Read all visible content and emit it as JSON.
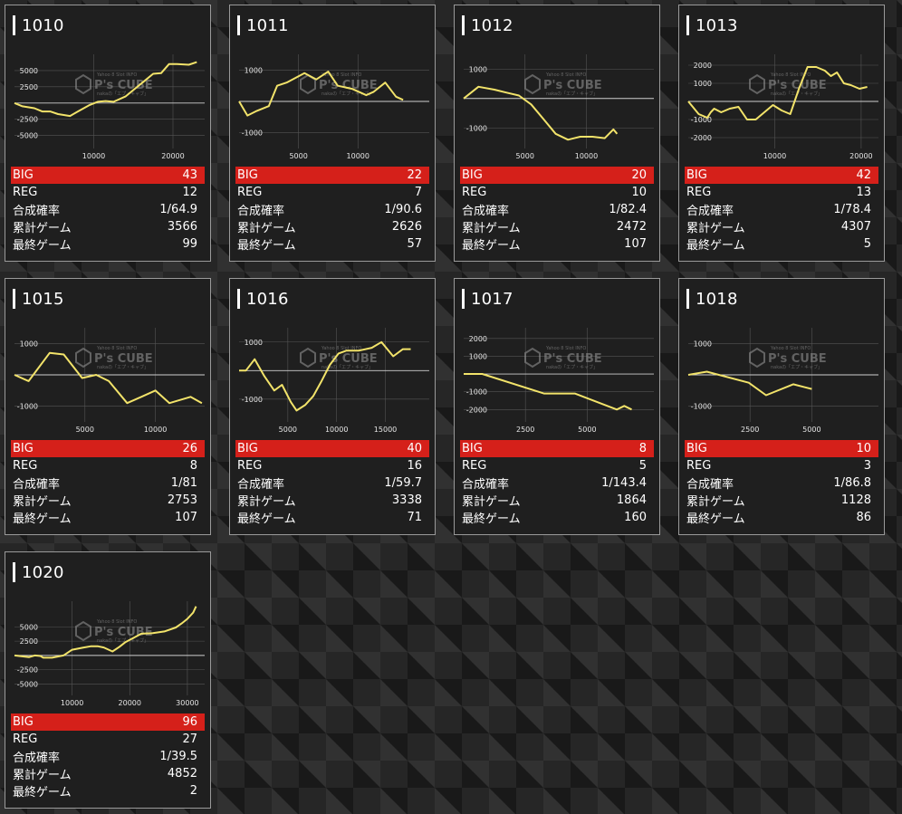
{
  "labels": {
    "big": "BIG",
    "reg": "REG",
    "prob": "合成確率",
    "total": "累計ゲーム",
    "last": "最終ゲーム"
  },
  "colors": {
    "accent": "#d5201a",
    "line": "#f2e36a",
    "grid": "#555555",
    "panel": "#1f1f1f"
  },
  "watermark": {
    "brand": "P's CUBE",
    "top": "Yahoo 8 Slot INFO",
    "bottom": "nakaの「エプ・キャブ」"
  },
  "cards": [
    {
      "id": "1010",
      "big": "43",
      "reg": "12",
      "prob": "1/64.9",
      "total": "3566",
      "last": "99",
      "chart_data": {
        "type": "line",
        "xlim": [
          0,
          24000
        ],
        "ylim": [
          -7000,
          7500
        ],
        "xticks": [
          "10000",
          "20000"
        ],
        "xtick_values": [
          10000,
          20000
        ],
        "yticks": [
          "5000",
          "2500",
          "",
          "-2500",
          "-5000"
        ],
        "ytick_values": [
          5000,
          2500,
          0,
          -2500,
          -5000
        ],
        "x": [
          0,
          1000,
          2500,
          3500,
          4500,
          5500,
          7000,
          8000,
          9500,
          10500,
          11500,
          12500,
          14000,
          15000,
          16500,
          17500,
          18500,
          19500,
          20500,
          22000,
          23000
        ],
        "y": [
          0,
          -500,
          -800,
          -1300,
          -1300,
          -1700,
          -2000,
          -1300,
          -300,
          200,
          300,
          200,
          1000,
          2000,
          3500,
          4500,
          4600,
          6000,
          6000,
          5900,
          6300
        ]
      }
    },
    {
      "id": "1011",
      "big": "22",
      "reg": "7",
      "prob": "1/90.6",
      "total": "2626",
      "last": "57",
      "chart_data": {
        "type": "line",
        "xlim": [
          0,
          16000
        ],
        "ylim": [
          -1500,
          1500
        ],
        "xticks": [
          "5000",
          "10000"
        ],
        "xtick_values": [
          5000,
          10000
        ],
        "yticks": [
          "1000",
          "",
          "-1000"
        ],
        "ytick_values": [
          1000,
          0,
          -1000
        ],
        "x": [
          0,
          700,
          1500,
          2500,
          3200,
          4000,
          5500,
          6500,
          7500,
          8300,
          9500,
          10700,
          11300,
          12300,
          13200,
          13800
        ],
        "y": [
          0,
          -450,
          -300,
          -150,
          500,
          600,
          900,
          700,
          950,
          500,
          400,
          200,
          300,
          600,
          150,
          50
        ]
      }
    },
    {
      "id": "1012",
      "big": "20",
      "reg": "10",
      "prob": "1/82.4",
      "total": "2472",
      "last": "107",
      "chart_data": {
        "type": "line",
        "xlim": [
          0,
          15500
        ],
        "ylim": [
          -1700,
          1500
        ],
        "xticks": [
          "5000",
          "10000"
        ],
        "xtick_values": [
          5000,
          10000
        ],
        "yticks": [
          "1000",
          "",
          "-1000"
        ],
        "ytick_values": [
          1000,
          0,
          -1000
        ],
        "x": [
          0,
          1200,
          2500,
          3500,
          4500,
          5500,
          6500,
          7500,
          8500,
          9500,
          10500,
          11500,
          12200,
          12500
        ],
        "y": [
          0,
          400,
          300,
          200,
          100,
          -200,
          -700,
          -1200,
          -1400,
          -1300,
          -1300,
          -1350,
          -1050,
          -1200
        ]
      }
    },
    {
      "id": "1013",
      "big": "42",
      "reg": "13",
      "prob": "1/78.4",
      "total": "4307",
      "last": "5",
      "chart_data": {
        "type": "line",
        "xlim": [
          0,
          22000
        ],
        "ylim": [
          -2600,
          2600
        ],
        "xticks": [
          "10000",
          "20000"
        ],
        "xtick_values": [
          10000,
          20000
        ],
        "yticks": [
          "2000",
          "1000",
          "",
          "-1000",
          "-2000"
        ],
        "ytick_values": [
          2000,
          1000,
          0,
          -1000,
          -2000
        ],
        "x": [
          0,
          1200,
          2200,
          2600,
          3000,
          3800,
          4800,
          5800,
          6800,
          7800,
          8800,
          9800,
          10800,
          11800,
          12800,
          13800,
          14800,
          15800,
          16500,
          17200,
          18000,
          18800,
          19800,
          20700
        ],
        "y": [
          0,
          -700,
          -900,
          -600,
          -400,
          -600,
          -400,
          -300,
          -1000,
          -1000,
          -600,
          -200,
          -500,
          -700,
          700,
          1900,
          1900,
          1700,
          1400,
          1600,
          1000,
          900,
          700,
          800
        ]
      }
    },
    {
      "id": "1015",
      "big": "26",
      "reg": "8",
      "prob": "1/81",
      "total": "2753",
      "last": "107",
      "chart_data": {
        "type": "line",
        "xlim": [
          0,
          13500
        ],
        "ylim": [
          -1500,
          1500
        ],
        "xticks": [
          "5000",
          "10000"
        ],
        "xtick_values": [
          5000,
          10000
        ],
        "yticks": [
          "1000",
          "",
          "-1000"
        ],
        "ytick_values": [
          1000,
          0,
          -1000
        ],
        "x": [
          0,
          1000,
          2500,
          3500,
          4800,
          5800,
          6700,
          8000,
          9000,
          10000,
          11000,
          12500,
          13300
        ],
        "y": [
          0,
          -200,
          700,
          650,
          -100,
          0,
          -200,
          -900,
          -700,
          -500,
          -900,
          -700,
          -900
        ]
      }
    },
    {
      "id": "1016",
      "big": "40",
      "reg": "16",
      "prob": "1/59.7",
      "total": "3338",
      "last": "71",
      "chart_data": {
        "type": "line",
        "xlim": [
          0,
          19500
        ],
        "ylim": [
          -1800,
          1500
        ],
        "xticks": [
          "5000",
          "10000",
          "15000"
        ],
        "xtick_values": [
          5000,
          10000,
          15000
        ],
        "yticks": [
          "1000",
          "",
          "-1000"
        ],
        "ytick_values": [
          1000,
          0,
          -1000
        ],
        "x": [
          0,
          700,
          1600,
          2600,
          3600,
          4400,
          5300,
          5900,
          6800,
          7600,
          8400,
          9300,
          10200,
          11000,
          12300,
          13600,
          14600,
          15800,
          16800,
          17600
        ],
        "y": [
          0,
          0,
          400,
          -200,
          -700,
          -500,
          -1100,
          -1400,
          -1200,
          -900,
          -400,
          200,
          600,
          700,
          700,
          800,
          1000,
          500,
          750,
          750
        ]
      }
    },
    {
      "id": "1017",
      "big": "8",
      "reg": "5",
      "prob": "1/143.4",
      "total": "1864",
      "last": "160",
      "chart_data": {
        "type": "line",
        "xlim": [
          0,
          7700
        ],
        "ylim": [
          -2700,
          2600
        ],
        "xticks": [
          "2500",
          "5000"
        ],
        "xtick_values": [
          2500,
          5000
        ],
        "yticks": [
          "2000",
          "1000",
          "",
          "-1000",
          "-2000"
        ],
        "ytick_values": [
          2000,
          1000,
          0,
          -1000,
          -2000
        ],
        "x": [
          0,
          750,
          3250,
          4500,
          6200,
          6500,
          6800
        ],
        "y": [
          0,
          0,
          -1100,
          -1100,
          -2000,
          -1800,
          -2000
        ]
      }
    },
    {
      "id": "1018",
      "big": "10",
      "reg": "3",
      "prob": "1/86.8",
      "total": "1128",
      "last": "86",
      "chart_data": {
        "type": "line",
        "xlim": [
          0,
          7700
        ],
        "ylim": [
          -1500,
          1500
        ],
        "xticks": [
          "2500",
          "5000"
        ],
        "xtick_values": [
          2500,
          5000
        ],
        "yticks": [
          "1000",
          "",
          "-1000"
        ],
        "ytick_values": [
          1000,
          0,
          -1000
        ],
        "x": [
          0,
          750,
          2450,
          3150,
          4250,
          5000
        ],
        "y": [
          0,
          100,
          -250,
          -650,
          -300,
          -450
        ]
      }
    },
    {
      "id": "1020",
      "big": "96",
      "reg": "27",
      "prob": "1/39.5",
      "total": "4852",
      "last": "2",
      "chart_data": {
        "type": "line",
        "xlim": [
          0,
          33000
        ],
        "ylim": [
          -7000,
          9500
        ],
        "xticks": [
          "10000",
          "20000",
          "30000"
        ],
        "xtick_values": [
          10000,
          20000,
          30000
        ],
        "yticks": [
          "5000",
          "2500",
          "",
          "-2500",
          "-5000"
        ],
        "ytick_values": [
          5000,
          2500,
          0,
          -2500,
          -5000
        ],
        "x": [
          0,
          2500,
          3500,
          4500,
          5000,
          6500,
          8500,
          10000,
          12000,
          13200,
          14500,
          15500,
          17000,
          18200,
          19200,
          20500,
          22000,
          24000,
          26000,
          28000,
          29000,
          30000,
          31000,
          31500
        ],
        "y": [
          0,
          -300,
          0,
          -100,
          -400,
          -400,
          0,
          1000,
          1400,
          1600,
          1600,
          1400,
          700,
          1500,
          2300,
          3000,
          3800,
          3900,
          4200,
          4900,
          5600,
          6400,
          7500,
          8600
        ]
      }
    }
  ]
}
